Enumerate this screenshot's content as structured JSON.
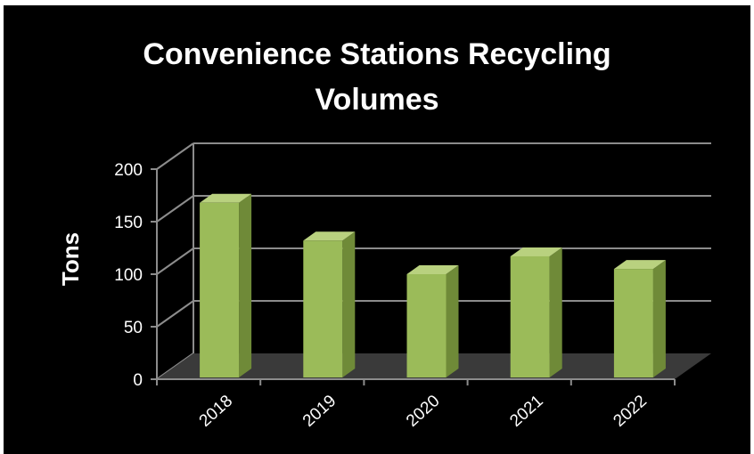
{
  "chart_data": {
    "type": "bar",
    "title": "Convenience Stations Recycling\nVolumes",
    "xlabel": "",
    "ylabel": "Tons",
    "categories": [
      "2018",
      "2019",
      "2020",
      "2021",
      "2022"
    ],
    "values": [
      168,
      132,
      100,
      117,
      105
    ],
    "ylim": [
      0,
      200
    ],
    "yticks": [
      0,
      50,
      100,
      150,
      200
    ],
    "grid": true,
    "legend": "none",
    "style": "3d-column",
    "colors": {
      "background": "#000000",
      "bar_front": "#9bbb59",
      "bar_side": "#6f8a38",
      "bar_top": "#b9d17f",
      "floor": "#3a3a3a",
      "grid": "#8c8c8c",
      "text": "#ffffff"
    }
  }
}
